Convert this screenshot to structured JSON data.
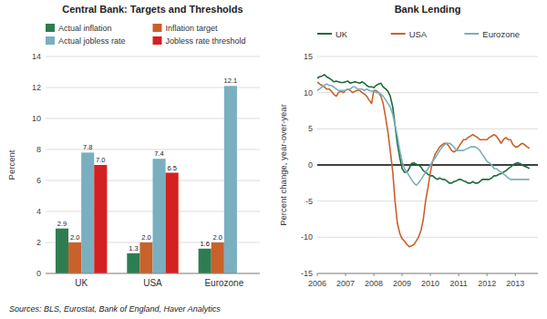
{
  "chart_data": [
    {
      "type": "bar",
      "title": "Central Bank: Targets and Thresholds",
      "categories": [
        "UK",
        "USA",
        "Eurozone"
      ],
      "series": [
        {
          "name": "Actual inflation",
          "color": "#2e7d52",
          "values": [
            2.9,
            1.3,
            1.6
          ]
        },
        {
          "name": "Inflation target",
          "color": "#c8622a",
          "values": [
            2.0,
            2.0,
            2.0
          ],
          "value_labels": [
            "2.0",
            "2.0",
            "2.0"
          ]
        },
        {
          "name": "Actual jobless rate",
          "color": "#7aafc0",
          "values": [
            7.8,
            7.4,
            12.1
          ]
        },
        {
          "name": "Jobless rate threshold",
          "color": "#d42020",
          "values": [
            7.0,
            6.5,
            null
          ],
          "value_labels": [
            "7.0",
            "6.5",
            null
          ]
        }
      ],
      "ylabel": "Percent",
      "ylim": [
        0,
        14
      ],
      "yticks": [
        0,
        2,
        4,
        6,
        8,
        10,
        12,
        14
      ],
      "grid": true,
      "legend": "top",
      "data_labels": true,
      "annotations": [
        "Sources: BLS, Eurostat, Bank of England, Haver Analytics"
      ]
    },
    {
      "type": "line",
      "title": "Bank Lending",
      "ylabel": "Percent change, year-over-year",
      "x": [
        2006.0,
        2006.08,
        2006.17,
        2006.25,
        2006.33,
        2006.42,
        2006.5,
        2006.58,
        2006.67,
        2006.75,
        2006.83,
        2006.92,
        2007.0,
        2007.08,
        2007.17,
        2007.25,
        2007.33,
        2007.42,
        2007.5,
        2007.58,
        2007.67,
        2007.75,
        2007.83,
        2007.92,
        2008.0,
        2008.08,
        2008.17,
        2008.25,
        2008.33,
        2008.42,
        2008.5,
        2008.58,
        2008.67,
        2008.75,
        2008.83,
        2008.92,
        2009.0,
        2009.08,
        2009.17,
        2009.25,
        2009.33,
        2009.42,
        2009.5,
        2009.58,
        2009.67,
        2009.75,
        2009.83,
        2009.92,
        2010.0,
        2010.08,
        2010.17,
        2010.25,
        2010.33,
        2010.42,
        2010.5,
        2010.58,
        2010.67,
        2010.75,
        2010.83,
        2010.92,
        2011.0,
        2011.08,
        2011.17,
        2011.25,
        2011.33,
        2011.42,
        2011.5,
        2011.58,
        2011.67,
        2011.75,
        2011.83,
        2011.92,
        2012.0,
        2012.08,
        2012.17,
        2012.25,
        2012.33,
        2012.42,
        2012.5,
        2012.58,
        2012.67,
        2012.75,
        2012.83,
        2012.92,
        2013.0,
        2013.08,
        2013.17,
        2013.25,
        2013.33,
        2013.42,
        2013.5
      ],
      "series": [
        {
          "name": "UK",
          "color": "#1e6b3a",
          "values": [
            12.0,
            12.2,
            12.3,
            12.5,
            12.2,
            12.0,
            11.8,
            11.5,
            11.6,
            11.5,
            11.4,
            11.4,
            11.5,
            11.6,
            11.3,
            11.4,
            11.5,
            11.4,
            11.3,
            11.5,
            11.3,
            11.0,
            10.8,
            10.8,
            10.7,
            11.0,
            11.2,
            11.3,
            10.8,
            10.5,
            10.2,
            9.5,
            8.0,
            5.5,
            3.0,
            1.0,
            -0.5,
            -1.0,
            -1.0,
            -0.5,
            0.2,
            0.3,
            0.1,
            0.0,
            -0.3,
            -0.8,
            -1.0,
            -1.3,
            -1.5,
            -1.5,
            -1.8,
            -2.0,
            -1.8,
            -2.0,
            -2.0,
            -2.2,
            -2.5,
            -2.5,
            -2.3,
            -2.2,
            -2.0,
            -2.0,
            -2.2,
            -2.3,
            -2.5,
            -2.5,
            -2.3,
            -2.5,
            -2.5,
            -2.3,
            -2.0,
            -2.0,
            -2.0,
            -2.0,
            -1.8,
            -1.5,
            -1.5,
            -1.3,
            -1.2,
            -1.0,
            -0.8,
            -0.5,
            -0.3,
            0.0,
            0.2,
            0.3,
            0.2,
            0.0,
            -0.2,
            -0.3,
            -0.5
          ]
        },
        {
          "name": "USA",
          "color": "#c8622a",
          "values": [
            11.5,
            11.2,
            11.0,
            10.8,
            10.5,
            10.5,
            10.2,
            9.8,
            9.5,
            10.0,
            10.2,
            10.0,
            10.3,
            10.5,
            10.3,
            10.0,
            10.2,
            10.3,
            10.3,
            10.0,
            9.8,
            9.5,
            9.0,
            8.5,
            10.3,
            10.3,
            10.0,
            9.5,
            8.5,
            6.5,
            4.5,
            2.0,
            -1.0,
            -5.0,
            -8.0,
            -9.5,
            -10.2,
            -10.5,
            -11.0,
            -11.3,
            -11.2,
            -11.0,
            -10.5,
            -10.0,
            -9.0,
            -7.5,
            -5.0,
            -3.0,
            -1.0,
            0.5,
            1.5,
            2.0,
            2.5,
            2.8,
            3.0,
            3.0,
            2.5,
            2.0,
            1.8,
            2.0,
            2.5,
            3.0,
            3.5,
            3.5,
            3.8,
            4.0,
            4.2,
            4.0,
            3.8,
            3.5,
            3.5,
            3.5,
            3.5,
            3.8,
            4.0,
            4.2,
            4.0,
            3.5,
            3.0,
            3.5,
            3.8,
            3.5,
            3.5,
            2.8,
            2.5,
            2.5,
            2.8,
            3.0,
            2.8,
            2.5,
            2.3
          ]
        },
        {
          "name": "Eurozone",
          "color": "#7aafc0",
          "values": [
            10.3,
            10.5,
            10.8,
            11.0,
            11.2,
            11.0,
            11.0,
            10.8,
            10.5,
            10.3,
            10.3,
            10.3,
            10.3,
            10.5,
            10.5,
            10.8,
            10.8,
            10.5,
            10.5,
            10.5,
            10.3,
            10.5,
            10.3,
            10.2,
            10.2,
            10.0,
            10.0,
            9.8,
            9.5,
            9.0,
            8.5,
            8.0,
            7.0,
            5.5,
            4.0,
            2.0,
            0.5,
            -0.5,
            -1.0,
            -1.5,
            -2.0,
            -2.5,
            -2.8,
            -2.5,
            -2.0,
            -1.5,
            -1.0,
            -0.5,
            0.0,
            0.5,
            1.0,
            1.5,
            2.0,
            2.5,
            2.8,
            3.0,
            3.0,
            2.8,
            2.5,
            2.0,
            2.0,
            2.0,
            2.0,
            2.2,
            2.3,
            2.5,
            2.5,
            2.5,
            2.3,
            2.0,
            1.5,
            1.0,
            0.5,
            0.3,
            0.0,
            -0.5,
            -0.5,
            -0.8,
            -1.0,
            -1.2,
            -1.5,
            -1.8,
            -2.0,
            -2.0,
            -2.0,
            -2.0,
            -2.0,
            -2.0,
            -2.0,
            -2.0,
            -2.0
          ]
        }
      ],
      "xlim": [
        2006,
        2013.8
      ],
      "xticks": [
        2006,
        2007,
        2008,
        2009,
        2010,
        2011,
        2012,
        2013
      ],
      "ylim": [
        -15,
        15
      ],
      "yticks": [
        -15,
        -10,
        -5,
        0,
        5,
        10,
        15
      ],
      "grid": true,
      "legend": "top"
    }
  ]
}
